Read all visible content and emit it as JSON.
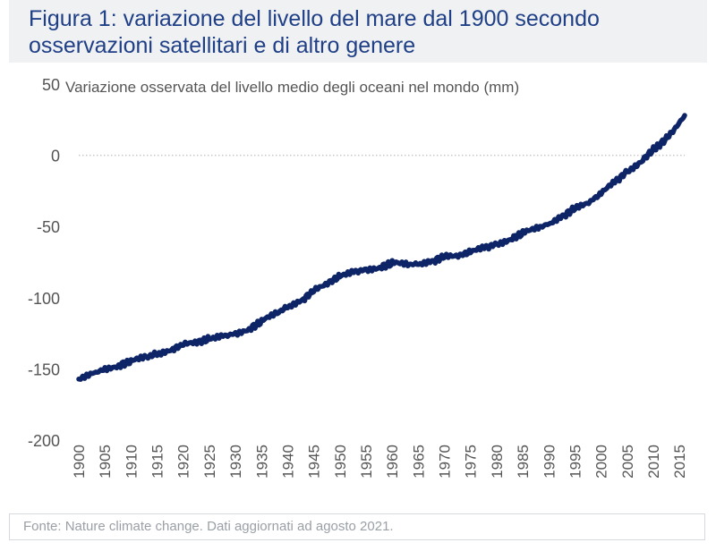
{
  "header": {
    "title_line1": "Figura 1: variazione del livello del mare dal 1900 secondo",
    "title_line2": "osservazioni satellitari e di altro genere"
  },
  "footer": {
    "source": "Fonte: Nature climate change. Dati aggiornati ad agosto 2021."
  },
  "colors": {
    "title": "#1f3f86",
    "line": "#0d2466",
    "axis_text": "#555555",
    "zero_line": "#c8c8c8"
  },
  "chart_data": {
    "type": "line",
    "title": "",
    "ylabel": "Variazione osservata del livello medio degli oceani nel mondo (mm)",
    "xlabel": "",
    "xlim": [
      1900,
      2016
    ],
    "ylim": [
      -200,
      50
    ],
    "yticks": [
      50,
      0,
      -50,
      -100,
      -150,
      -200
    ],
    "ytick_labels": [
      "50",
      "0",
      "-50",
      "-100",
      "-150",
      "-200"
    ],
    "xticks": [
      "1900",
      "1905",
      "1910",
      "1915",
      "1920",
      "1925",
      "1930",
      "1935",
      "1940",
      "1945",
      "1950",
      "1955",
      "1960",
      "1965",
      "1970",
      "1975",
      "1980",
      "1985",
      "1990",
      "1995",
      "2000",
      "2005",
      "2010",
      "2015"
    ],
    "series": [
      {
        "name": "Livello medio degli oceani",
        "x": [
          1900,
          1903,
          1905,
          1908,
          1910,
          1913,
          1915,
          1918,
          1920,
          1923,
          1925,
          1928,
          1930,
          1933,
          1935,
          1938,
          1940,
          1943,
          1945,
          1948,
          1950,
          1953,
          1955,
          1958,
          1960,
          1963,
          1965,
          1968,
          1970,
          1973,
          1975,
          1978,
          1980,
          1983,
          1985,
          1988,
          1990,
          1993,
          1995,
          1998,
          2000,
          2003,
          2005,
          2008,
          2010,
          2012,
          2014,
          2016
        ],
        "values": [
          -157,
          -153,
          -150,
          -147,
          -145,
          -142,
          -139,
          -136,
          -133,
          -131,
          -129,
          -127,
          -125,
          -121,
          -117,
          -111,
          -106,
          -101,
          -95,
          -89,
          -85,
          -82,
          -80,
          -78,
          -76,
          -77,
          -76,
          -74,
          -71,
          -70,
          -68,
          -65,
          -62,
          -58,
          -55,
          -51,
          -48,
          -42,
          -37,
          -32,
          -27,
          -18,
          -11,
          -3,
          4,
          10,
          18,
          28
        ]
      }
    ]
  }
}
